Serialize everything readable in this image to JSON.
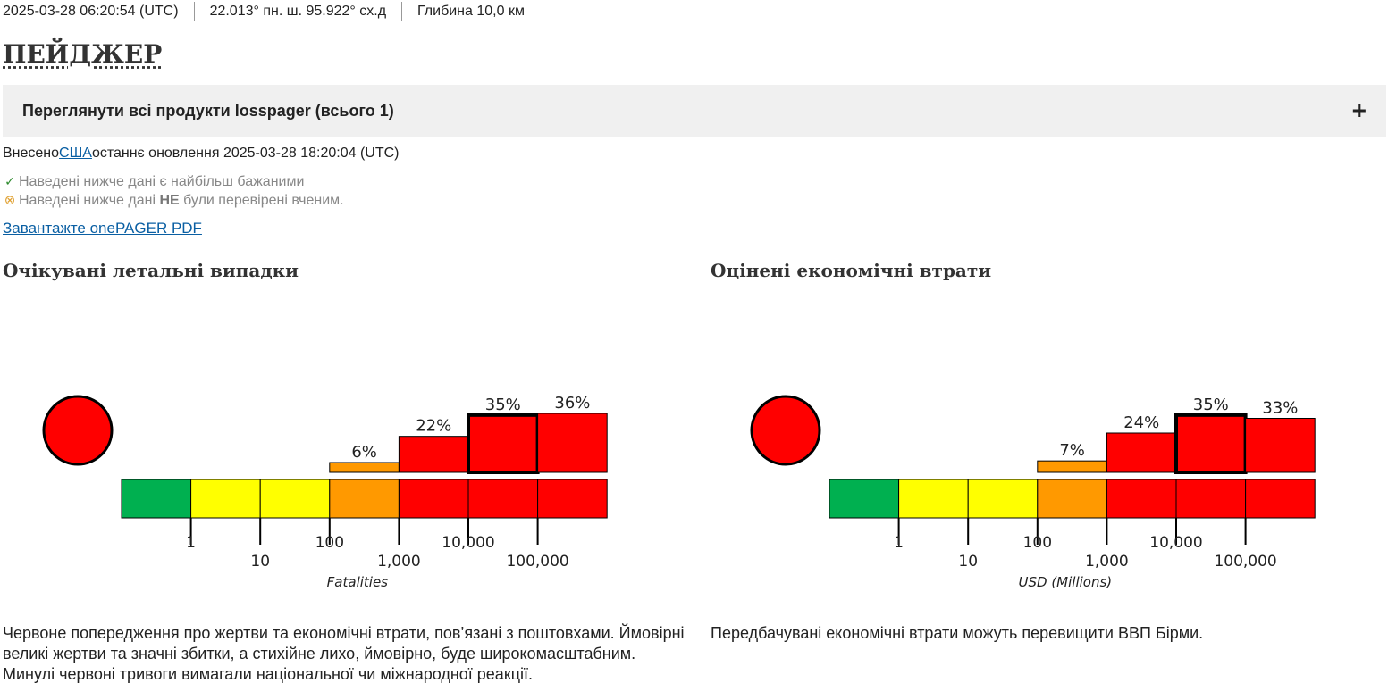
{
  "header": {
    "time": "2025-03-28 06:20:54 (UTC)",
    "location": "22.013° пн. ш. 95.922° сх.д",
    "depth": "Глибина 10,0 км"
  },
  "page_title": "ПЕЙДЖЕР",
  "accordion": {
    "label": "Переглянути всі продукти losspager (всього 1)",
    "icon": "plus-icon"
  },
  "contributor": {
    "prefix": "Внесено",
    "link": "США",
    "suffix": "останнє оновлення 2025-03-28 18:20:04 (UTC)"
  },
  "notes": {
    "preferred": "Наведені нижче дані є найбільш бажаними",
    "unreviewed_pre": "Наведені нижче дані ",
    "unreviewed_bold": "НЕ",
    "unreviewed_post": " були перевірені вченим."
  },
  "download_label": "Завантажте onePAGER PDF",
  "colors": {
    "green": "#00b050",
    "yellow": "#ffff00",
    "orange": "#ff9900",
    "red": "#ff0000",
    "link": "#0a5fa3"
  },
  "chart_data": [
    {
      "type": "bar",
      "title": "Очікувані летальні випадки",
      "xlabel": "Fatalities",
      "alert_level": "red",
      "bands": [
        "green",
        "yellow",
        "yellow",
        "orange",
        "red",
        "red",
        "red"
      ],
      "categories": [
        "0-1",
        "1-10",
        "10-100",
        "100-1,000",
        "1,000-10,000",
        "10,000-100,000",
        "100,000+"
      ],
      "values": [
        0,
        0,
        0,
        6,
        22,
        35,
        36
      ],
      "value_labels": [
        "",
        "",
        "",
        "6%",
        "22%",
        "35%",
        "36%"
      ],
      "highlight_index": 5,
      "ticks": [
        "1",
        "10",
        "100",
        "1,000",
        "10,000",
        "100,000"
      ],
      "ylim": [
        0,
        36
      ]
    },
    {
      "type": "bar",
      "title": "Оцінені економічні втрати",
      "xlabel": "USD (Millions)",
      "alert_level": "red",
      "bands": [
        "green",
        "yellow",
        "yellow",
        "orange",
        "red",
        "red",
        "red"
      ],
      "categories": [
        "0-1",
        "1-10",
        "10-100",
        "100-1,000",
        "1,000-10,000",
        "10,000-100,000",
        "100,000+"
      ],
      "values": [
        0,
        0,
        0,
        7,
        24,
        35,
        33
      ],
      "value_labels": [
        "",
        "",
        "",
        "7%",
        "24%",
        "35%",
        "33%"
      ],
      "highlight_index": 5,
      "ticks": [
        "1",
        "10",
        "100",
        "1,000",
        "10,000",
        "100,000"
      ],
      "ylim": [
        0,
        36
      ]
    }
  ],
  "descriptions": {
    "fatalities": "Червоне попередження про жертви та економічні втрати, пов’язані з поштовхами. Ймовірні великі жертви та значні збитки, а стихійне лихо, ймовірно, буде широкомасштабним. Минулі червоні тривоги вимагали національної чи міжнародної реакції.",
    "economic": "Передбачувані економічні втрати можуть перевищити ВВП Бірми."
  }
}
